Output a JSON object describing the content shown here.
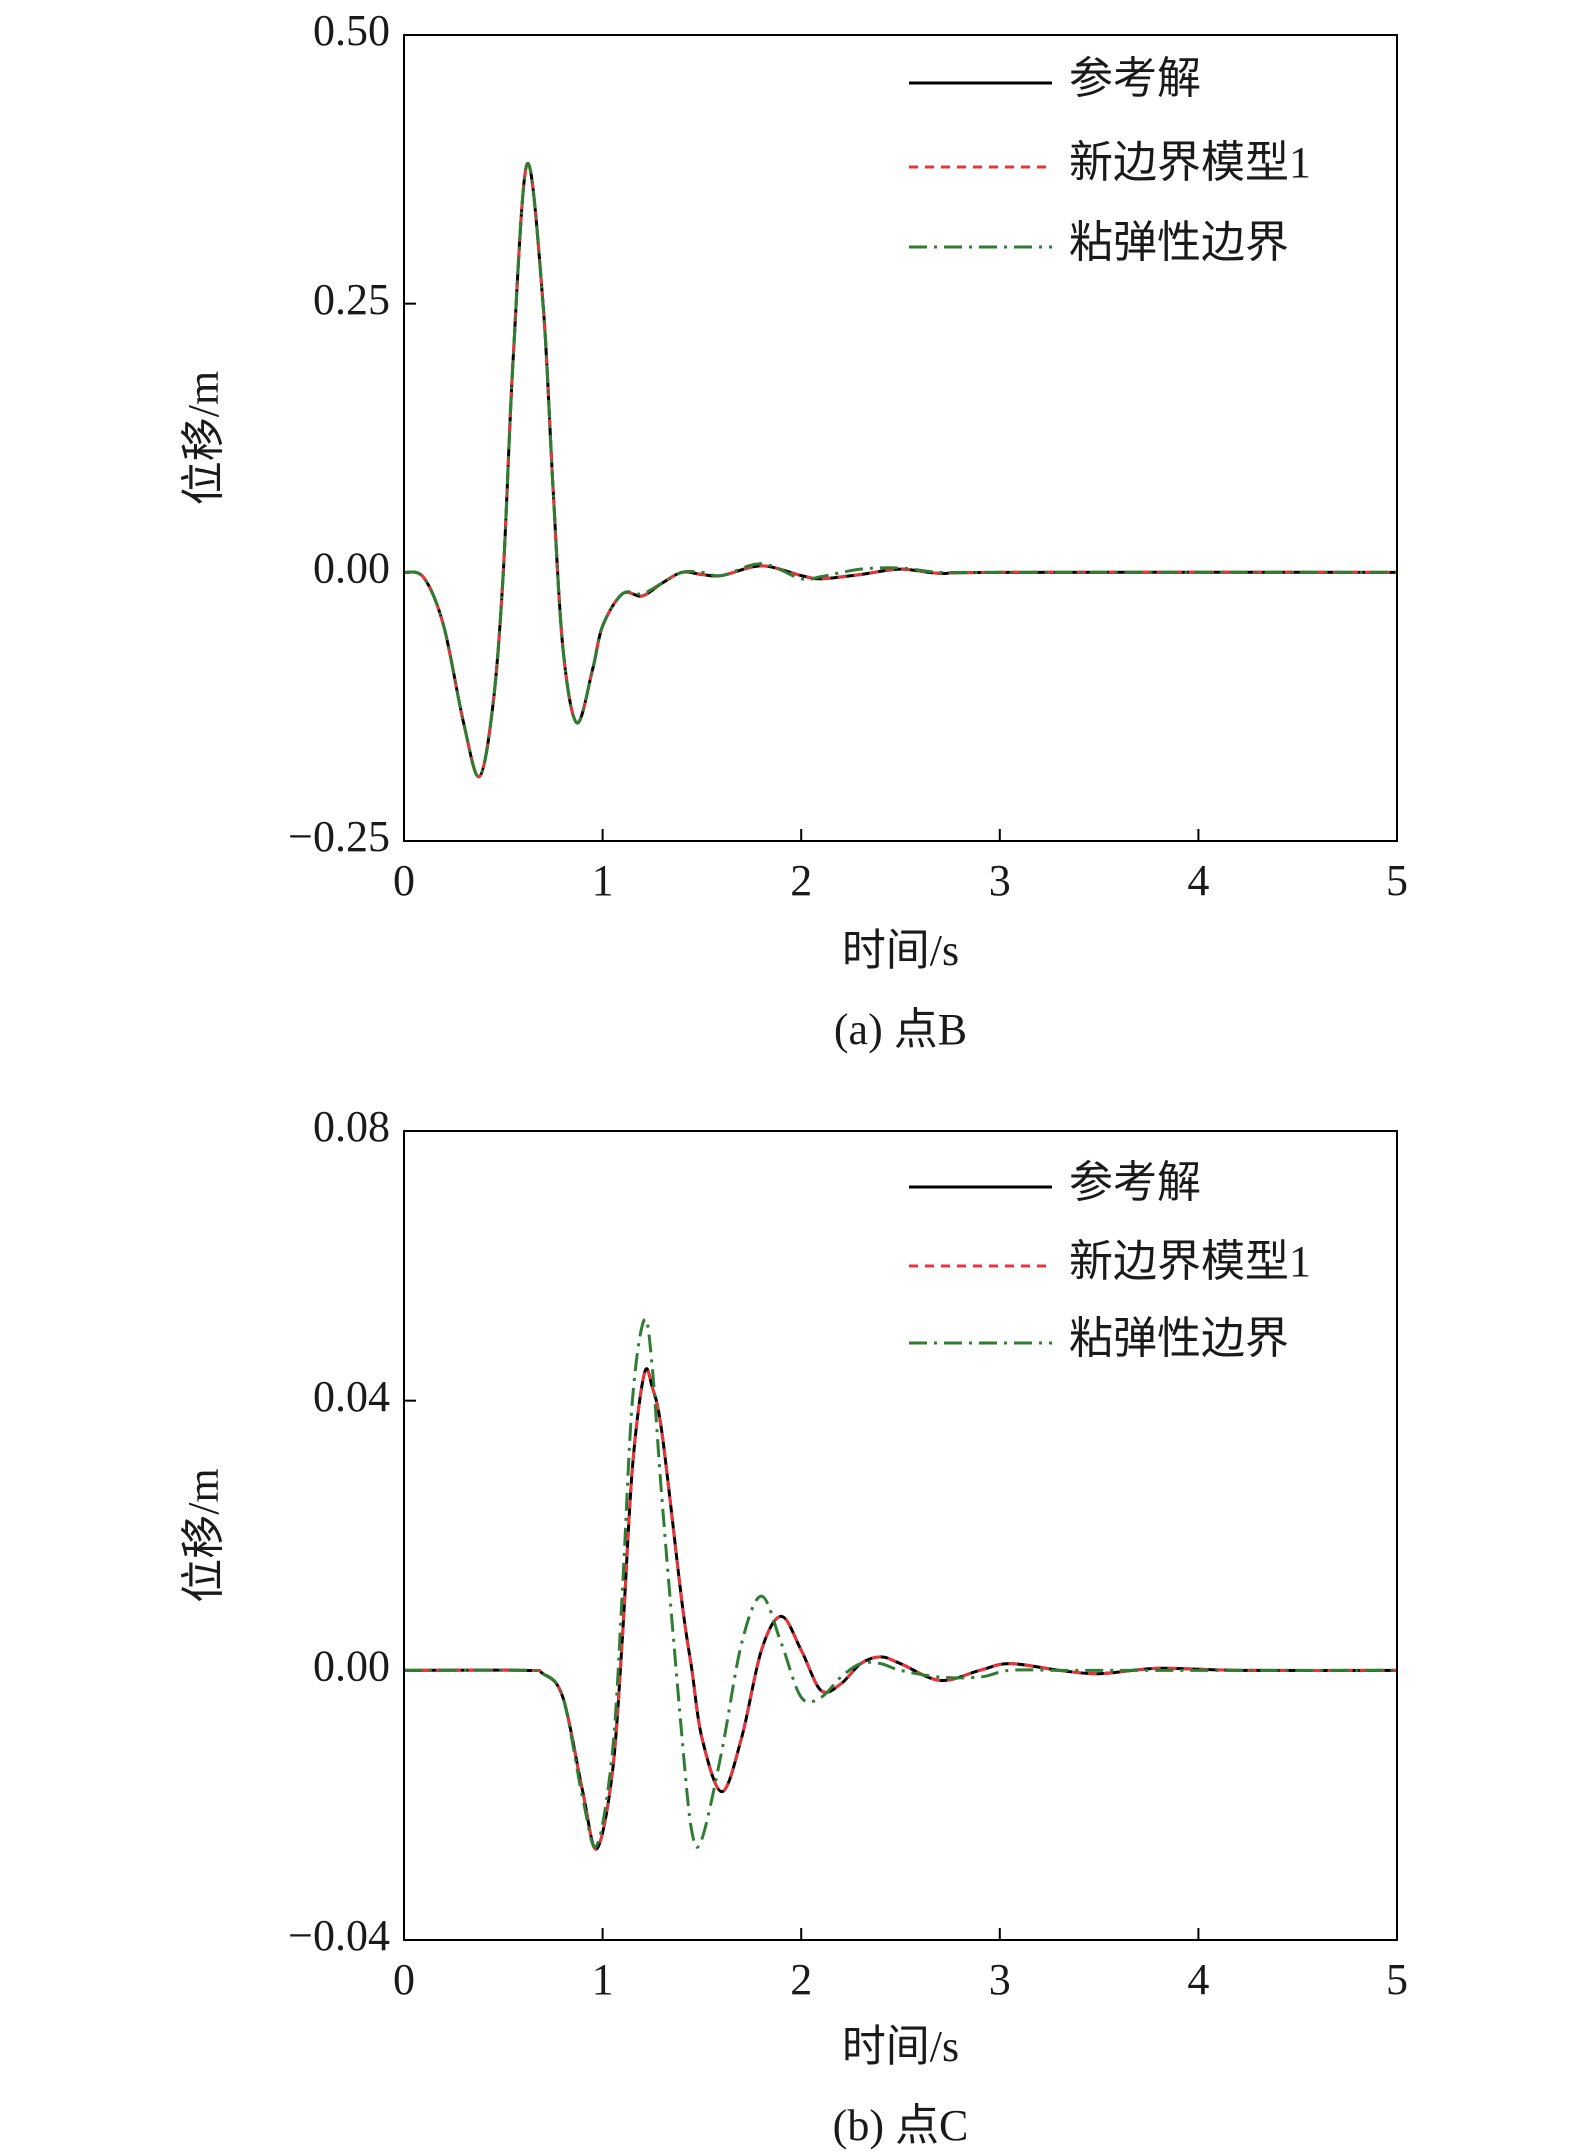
{
  "chart_data": [
    {
      "type": "line",
      "caption": "(a) 点B",
      "xlabel": "时间/s",
      "ylabel": "位移/m",
      "xlim": [
        0,
        5
      ],
      "xticks": [
        0,
        1,
        2,
        3,
        4,
        5
      ],
      "ylim": [
        -0.25,
        0.5
      ],
      "yticks": [
        {
          "value": -0.25,
          "label": "−0.25"
        },
        {
          "value": 0,
          "label": "0.00"
        },
        {
          "value": 0.25,
          "label": "0.25"
        },
        {
          "value": 0.5,
          "label": "0.50"
        }
      ],
      "x": [
        0,
        0.1,
        0.2,
        0.3,
        0.38,
        0.45,
        0.5,
        0.55,
        0.62,
        0.7,
        0.75,
        0.8,
        0.87,
        0.95,
        1.0,
        1.1,
        1.2,
        1.3,
        1.4,
        1.5,
        1.6,
        1.8,
        2.0,
        2.1,
        2.3,
        2.5,
        2.7,
        3.0,
        5.0
      ],
      "series": [
        {
          "name": "参考解",
          "color": "#000000",
          "dash": "solid",
          "values": [
            0,
            -0.005,
            -0.05,
            -0.14,
            -0.19,
            -0.12,
            0,
            0.2,
            0.38,
            0.25,
            0.08,
            -0.07,
            -0.14,
            -0.09,
            -0.05,
            -0.02,
            -0.022,
            -0.01,
            0,
            -0.002,
            -0.003,
            0.006,
            -0.003,
            -0.006,
            -0.002,
            0.003,
            -0.001,
            0,
            0
          ]
        },
        {
          "name": "新边界模型1",
          "color": "#e8343a",
          "dash": "dashed",
          "values": [
            0,
            -0.005,
            -0.05,
            -0.14,
            -0.19,
            -0.12,
            0,
            0.2,
            0.38,
            0.25,
            0.08,
            -0.07,
            -0.14,
            -0.09,
            -0.05,
            -0.02,
            -0.022,
            -0.01,
            0,
            -0.002,
            -0.003,
            0.006,
            -0.003,
            -0.006,
            -0.002,
            0.003,
            -0.001,
            0,
            0
          ]
        },
        {
          "name": "粘弹性边界",
          "color": "#2e7d32",
          "dash": "dashdot",
          "values": [
            0,
            -0.005,
            -0.05,
            -0.14,
            -0.19,
            -0.12,
            0,
            0.2,
            0.38,
            0.25,
            0.08,
            -0.07,
            -0.14,
            -0.09,
            -0.05,
            -0.02,
            -0.02,
            -0.01,
            0,
            0,
            -0.003,
            0.008,
            -0.006,
            -0.004,
            0.003,
            0.004,
            0,
            0,
            0
          ]
        }
      ]
    },
    {
      "type": "line",
      "caption": "(b) 点C",
      "xlabel": "时间/s",
      "ylabel": "位移/m",
      "xlim": [
        0,
        5
      ],
      "xticks": [
        0,
        1,
        2,
        3,
        4,
        5
      ],
      "ylim": [
        -0.04,
        0.08
      ],
      "yticks": [
        {
          "value": -0.04,
          "label": "−0.04"
        },
        {
          "value": 0,
          "label": "0.00"
        },
        {
          "value": 0.04,
          "label": "0.04"
        },
        {
          "value": 0.08,
          "label": "0.08"
        }
      ],
      "x": [
        0,
        0.6,
        0.7,
        0.8,
        0.9,
        0.97,
        1.05,
        1.1,
        1.15,
        1.21,
        1.25,
        1.3,
        1.4,
        1.45,
        1.5,
        1.6,
        1.7,
        1.8,
        1.9,
        2.0,
        2.1,
        2.2,
        2.3,
        2.4,
        2.5,
        2.7,
        2.9,
        3.05,
        3.3,
        3.5,
        3.8,
        4.2,
        5.0
      ],
      "series": [
        {
          "name": "参考解",
          "color": "#000000",
          "dash": "solid",
          "values": [
            0,
            0,
            -0.0005,
            -0.004,
            -0.018,
            -0.0265,
            -0.015,
            0.005,
            0.03,
            0.044,
            0.042,
            0.035,
            0.01,
            0,
            -0.01,
            -0.018,
            -0.01,
            0.003,
            0.008,
            0.003,
            -0.003,
            -0.002,
            0.001,
            0.002,
            0.001,
            -0.0015,
            0,
            0.001,
            0,
            -0.0005,
            0.0003,
            0,
            0
          ]
        },
        {
          "name": "新边界模型1",
          "color": "#e8343a",
          "dash": "dashed",
          "values": [
            0,
            0,
            -0.0005,
            -0.004,
            -0.018,
            -0.0265,
            -0.015,
            0.005,
            0.03,
            0.044,
            0.042,
            0.035,
            0.01,
            0,
            -0.01,
            -0.018,
            -0.01,
            0.003,
            0.008,
            0.003,
            -0.003,
            -0.002,
            0.001,
            0.002,
            0.001,
            -0.0015,
            0,
            0.001,
            0,
            -0.0005,
            0.0003,
            0,
            0
          ]
        },
        {
          "name": "粘弹性边界",
          "color": "#2e7d32",
          "dash": "dashdot",
          "values": [
            0,
            0,
            -0.0005,
            -0.004,
            -0.019,
            -0.026,
            -0.012,
            0.012,
            0.04,
            0.052,
            0.045,
            0.025,
            -0.01,
            -0.024,
            -0.025,
            -0.012,
            0.004,
            0.011,
            0.004,
            -0.004,
            -0.004,
            -0.001,
            0.001,
            0.001,
            0,
            -0.001,
            -0.001,
            0,
            0,
            0,
            0,
            0,
            0
          ]
        }
      ]
    }
  ]
}
